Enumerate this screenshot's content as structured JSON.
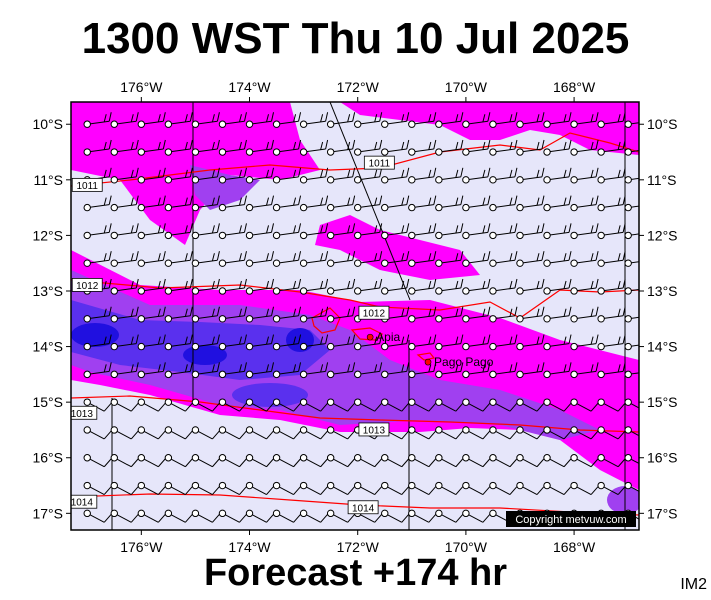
{
  "title": "1300 WST Thu 10 Jul 2025",
  "footer": "Forecast +174 hr",
  "image_code": "IM2",
  "copyright": "Copyright metvuw.com",
  "map": {
    "lon_range": [
      -177.3,
      -166.8
    ],
    "lat_range": [
      -17.3,
      -9.6
    ],
    "lon_ticks": [
      "176°W",
      "174°W",
      "172°W",
      "170°W",
      "168°W"
    ],
    "lon_tick_values": [
      -176,
      -174,
      -172,
      -170,
      -168
    ],
    "lat_ticks": [
      "10°S",
      "11°S",
      "12°S",
      "13°S",
      "14°S",
      "15°S",
      "16°S",
      "17°S"
    ],
    "lat_tick_values": [
      -10,
      -11,
      -12,
      -13,
      -14,
      -15,
      -16,
      -17
    ],
    "colors": {
      "background": "#e6e6fa",
      "rain_light": "#ff00ff",
      "rain_moderate": "#a040f0",
      "rain_heavy": "#5a30ee",
      "rain_very_heavy": "#2010e0",
      "isobar": "#ff0000",
      "land": "#ff0000"
    },
    "isobar_labels": [
      {
        "text": "1011",
        "lon": -177.0,
        "lat": -11.1
      },
      {
        "text": "1011",
        "lon": -171.6,
        "lat": -10.7
      },
      {
        "text": "1012",
        "lon": -177.0,
        "lat": -12.9
      },
      {
        "text": "1012",
        "lon": -171.7,
        "lat": -13.4
      },
      {
        "text": "1013",
        "lon": -177.1,
        "lat": -15.2
      },
      {
        "text": "1013",
        "lon": -171.7,
        "lat": -15.5
      },
      {
        "text": "1014",
        "lon": -177.1,
        "lat": -16.8
      },
      {
        "text": "1014",
        "lon": -171.9,
        "lat": -16.9
      }
    ],
    "places": [
      {
        "name": "Apia",
        "lon": -171.77,
        "lat": -13.83
      },
      {
        "name": "Pago Pago",
        "lon": -170.7,
        "lat": -14.28
      }
    ],
    "islands": [
      {
        "name": "Savai'i",
        "lon": -172.35,
        "lat": -13.6
      },
      {
        "name": "Upolu",
        "lon": -171.7,
        "lat": -13.9
      },
      {
        "name": "Tutuila",
        "lon": -170.7,
        "lat": -14.3
      }
    ]
  }
}
